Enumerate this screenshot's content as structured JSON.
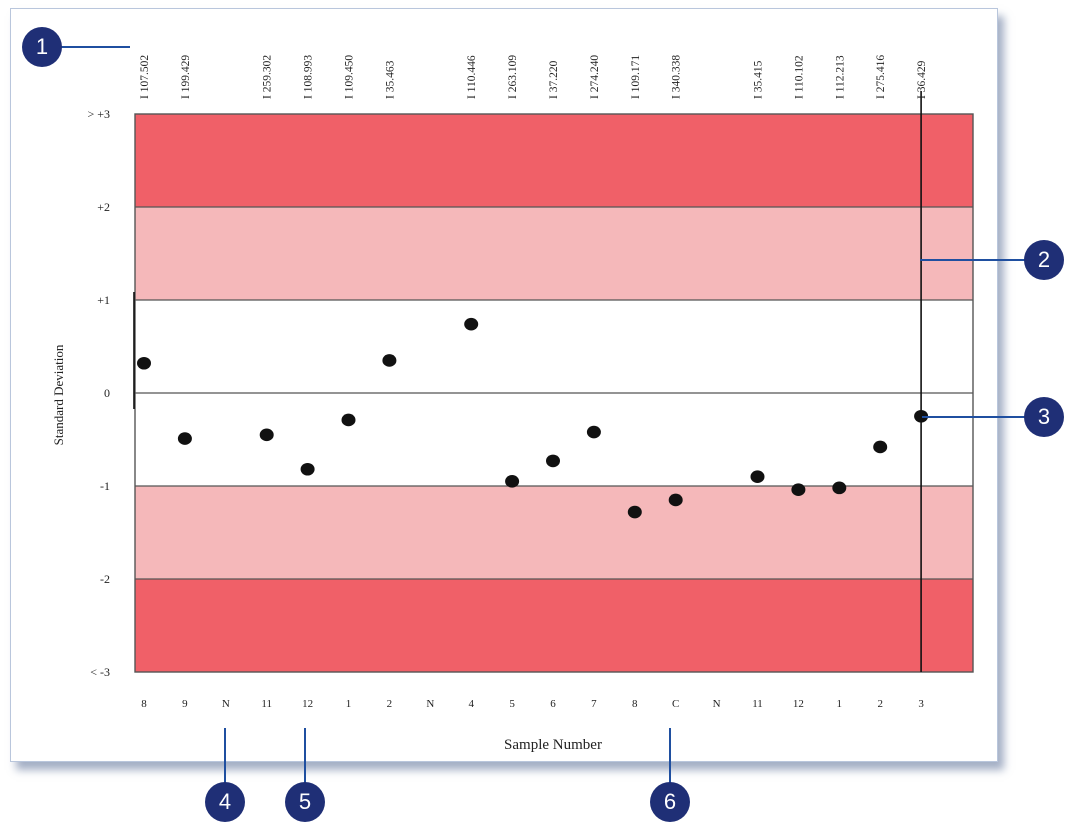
{
  "colors": {
    "outer_band": "#f06068",
    "inner_band": "#f5b8ba",
    "center_band": "#ffffff",
    "points": "#111111",
    "callout_fill": "#1f2f76",
    "callout_line": "#1f4fa0"
  },
  "callouts": [
    "1",
    "2",
    "3",
    "4",
    "5",
    "6"
  ],
  "chart_data": {
    "type": "scatter",
    "xlabel": "Sample Number",
    "ylabel": "Standard Deviation",
    "ylim": [
      -3,
      3
    ],
    "grid": false,
    "y_ticks": [
      "> +3",
      "+2",
      "+1",
      "0",
      "-1",
      "-2",
      "< -3"
    ],
    "bands": [
      {
        "from": 2,
        "to": 3,
        "color": "outer_band"
      },
      {
        "from": 1,
        "to": 2,
        "color": "inner_band"
      },
      {
        "from": -1,
        "to": 1,
        "color": "center_band"
      },
      {
        "from": -2,
        "to": -1,
        "color": "inner_band"
      },
      {
        "from": -3,
        "to": -2,
        "color": "outer_band"
      }
    ],
    "categories": [
      "8",
      "9",
      "N",
      "11",
      "12",
      "1",
      "2",
      "N",
      "4",
      "5",
      "6",
      "7",
      "8",
      "C",
      "N",
      "11",
      "12",
      "1",
      "2",
      "3"
    ],
    "top_labels": [
      "I 107.502",
      "I 199.429",
      "",
      "I 259.302",
      "I 108.993",
      "I 109.450",
      "I 35.463",
      "",
      "I 110.446",
      "I 263.109",
      "I 37.220",
      "I 274.240",
      "I 109.171",
      "I 340.338",
      "",
      "I 35.415",
      "I 110.102",
      "I 112.213",
      "I 275.416",
      "I 36.429"
    ],
    "series": [
      {
        "values": [
          0.32,
          -0.49,
          null,
          -0.45,
          -0.82,
          -0.29,
          0.35,
          null,
          0.74,
          -0.95,
          -0.73,
          -0.42,
          -1.28,
          -1.15,
          null,
          -0.9,
          -1.04,
          -1.02,
          -0.58,
          -0.25
        ]
      }
    ]
  }
}
